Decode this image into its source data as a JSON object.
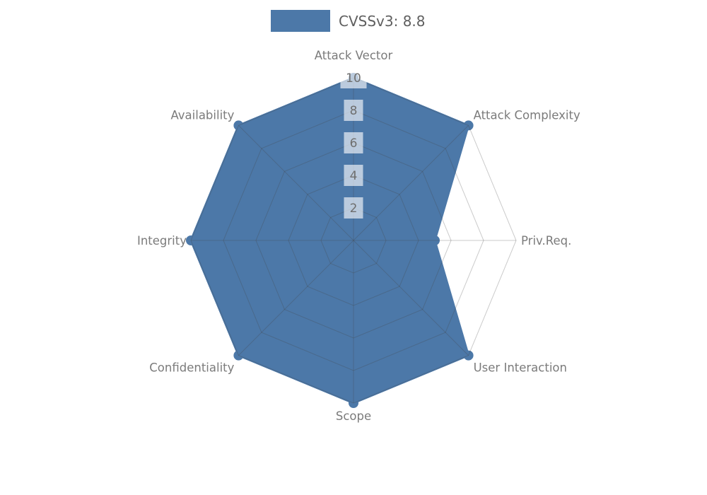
{
  "legend": {
    "label": "CVSSv3: 8.8",
    "swatch_color": "#4c78a8"
  },
  "chart_data": {
    "type": "radar",
    "title": "CVSSv3: 8.8",
    "categories": [
      "Attack Vector",
      "Attack Complexity",
      "Priv.Req.",
      "User Interaction",
      "Scope",
      "Confidentiality",
      "Integrity",
      "Availability"
    ],
    "series": [
      {
        "name": "CVSSv3: 8.8",
        "values": [
          10,
          10,
          5,
          10,
          10,
          10,
          10,
          10
        ]
      }
    ],
    "ticks": [
      2,
      4,
      6,
      8,
      10
    ],
    "rlim": [
      0,
      10
    ],
    "grid": true,
    "legend_position": "top-center",
    "colors": {
      "fill": "#4c78a8",
      "axis_label": "#7b7b7b",
      "tick_label": "#6e6e6e",
      "grid_line": "rgba(70,70,70,0.28)",
      "tick_box": "rgba(255,255,255,0.62)"
    }
  }
}
